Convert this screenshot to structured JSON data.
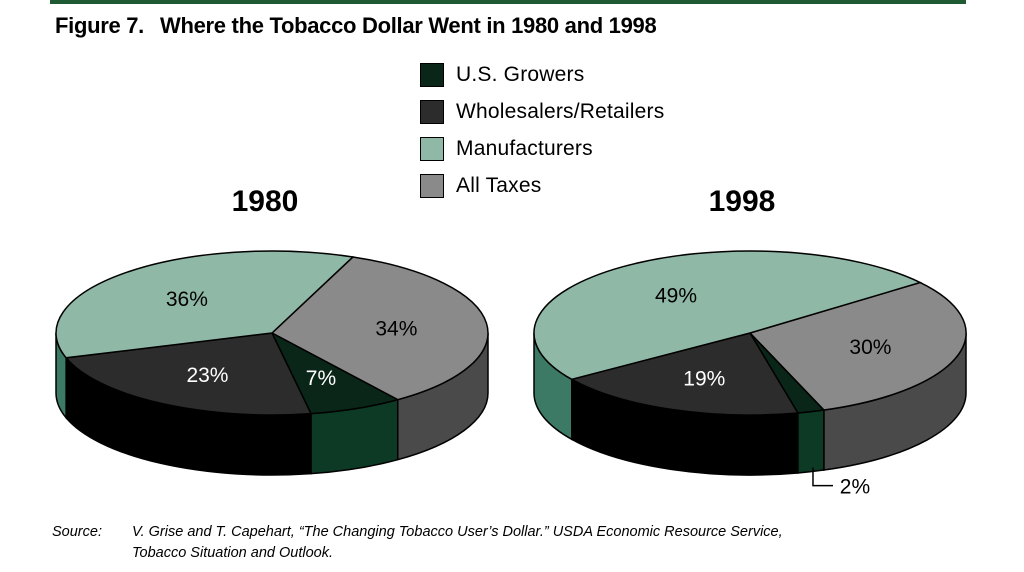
{
  "figure": {
    "number": "Figure 7.",
    "title": "Where the Tobacco Dollar Went in 1980 and 1998"
  },
  "legend": [
    {
      "label": "U.S. Growers",
      "color": "#0a2618"
    },
    {
      "label": "Wholesalers/Retailers",
      "color": "#2c2c2c"
    },
    {
      "label": "Manufacturers",
      "color": "#8fb8a6"
    },
    {
      "label": "All Taxes",
      "color": "#8a8a8a"
    }
  ],
  "chart_data": [
    {
      "type": "pie",
      "title": "1980",
      "categories": [
        "U.S. Growers",
        "Wholesalers/Retailers",
        "Manufacturers",
        "All Taxes"
      ],
      "values": [
        7,
        23,
        36,
        34
      ],
      "labels": [
        "7%",
        "23%",
        "36%",
        "34%"
      ]
    },
    {
      "type": "pie",
      "title": "1998",
      "categories": [
        "U.S. Growers",
        "Wholesalers/Retailers",
        "Manufacturers",
        "All Taxes"
      ],
      "values": [
        2,
        19,
        49,
        30
      ],
      "labels": [
        "2%",
        "19%",
        "49%",
        "30%"
      ]
    }
  ],
  "source": {
    "label": "Source:",
    "line1": "V. Grise and T. Capehart, “The Changing Tobacco User’s Dollar.” USDA Economic Resource Service,",
    "line2": "Tobacco Situation and Outlook."
  }
}
